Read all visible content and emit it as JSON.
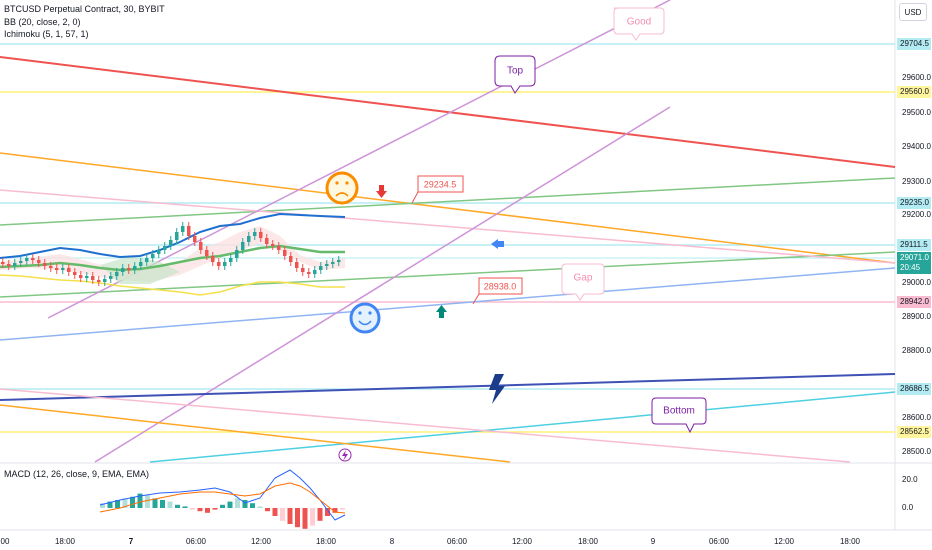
{
  "legend": {
    "symbol_line": "BTCUSD Perpetual Contract, 30, BYBIT",
    "bb": "BB (20, close, 2, 0)",
    "ichimoku": "Ichimoku (5, 1, 57, 1)",
    "macd": "MACD (12, 26, close, 9, EMA, EMA)"
  },
  "currency_button": "USD",
  "price_axis": {
    "ticks": [
      "29600.0",
      "29500.0",
      "29400.0",
      "29300.0",
      "29200.0",
      "29000.0",
      "28900.0",
      "28800.0",
      "28600.0",
      "28500.0"
    ],
    "level_labels": [
      {
        "text": "29704.5",
        "color": "#b2ebf2"
      },
      {
        "text": "29560.0",
        "color": "#fff59d"
      },
      {
        "text": "29235.0",
        "color": "#b2ebf2"
      },
      {
        "text": "29111.5",
        "color": "#b2ebf2"
      },
      {
        "text": "28942.0",
        "color": "#f8bbd0"
      },
      {
        "text": "28686.5",
        "color": "#b2ebf2"
      },
      {
        "text": "28562.5",
        "color": "#fff59d"
      }
    ],
    "current_price": "29071.0",
    "countdown": "20:45"
  },
  "macd_axis": {
    "ticks": [
      "20.0",
      "0.0"
    ]
  },
  "time_axis": {
    "ticks": [
      "00",
      "18:00",
      "7",
      "06:00",
      "12:00",
      "18:00",
      "8",
      "06:00",
      "12:00",
      "18:00",
      "9",
      "06:00",
      "12:00",
      "18:00"
    ]
  },
  "callouts": {
    "good": "Good",
    "top": "Top",
    "gap": "Gap",
    "bottom": "Bottom",
    "price_tag_upper": "29234.5",
    "price_tag_lower": "28938.0"
  },
  "icons": {
    "sad_face": "sad-face-icon",
    "happy_face": "happy-face-icon",
    "arrow_down": "arrow-down-icon",
    "arrow_up": "arrow-up-icon",
    "arrow_left": "arrow-left-icon",
    "lightning": "lightning-icon",
    "alert": "lightning-alert-icon"
  },
  "colors": {
    "candle_up": "#26a69a",
    "candle_down": "#ef5350",
    "bb_basis": "#4caf50",
    "bb_upper": "#1e6fd0",
    "bb_lower": "#f5e04a",
    "price_badge": "#26a69a"
  }
}
